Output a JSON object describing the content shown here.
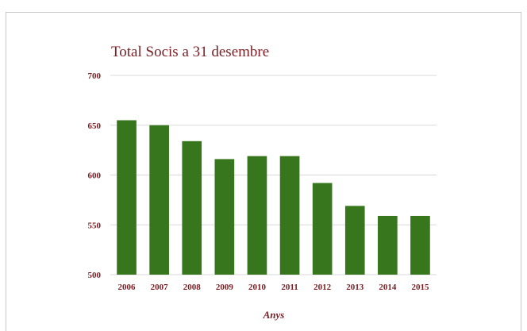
{
  "chart_data": {
    "type": "bar",
    "title": "Total Socis a 31 desembre",
    "xlabel": "Anys",
    "ylabel": "",
    "categories": [
      "2006",
      "2007",
      "2008",
      "2009",
      "2010",
      "2011",
      "2012",
      "2013",
      "2014",
      "2015"
    ],
    "values": [
      655,
      650,
      634,
      616,
      619,
      619,
      592,
      569,
      559,
      559
    ],
    "ylim": [
      500,
      700
    ],
    "yticks": [
      "700",
      "650",
      "600",
      "550",
      "500"
    ],
    "grid": true,
    "legend": "none",
    "colors": {
      "bar": "#38761d",
      "text": "#7b1d22",
      "grid": "#d9d9d9"
    }
  }
}
